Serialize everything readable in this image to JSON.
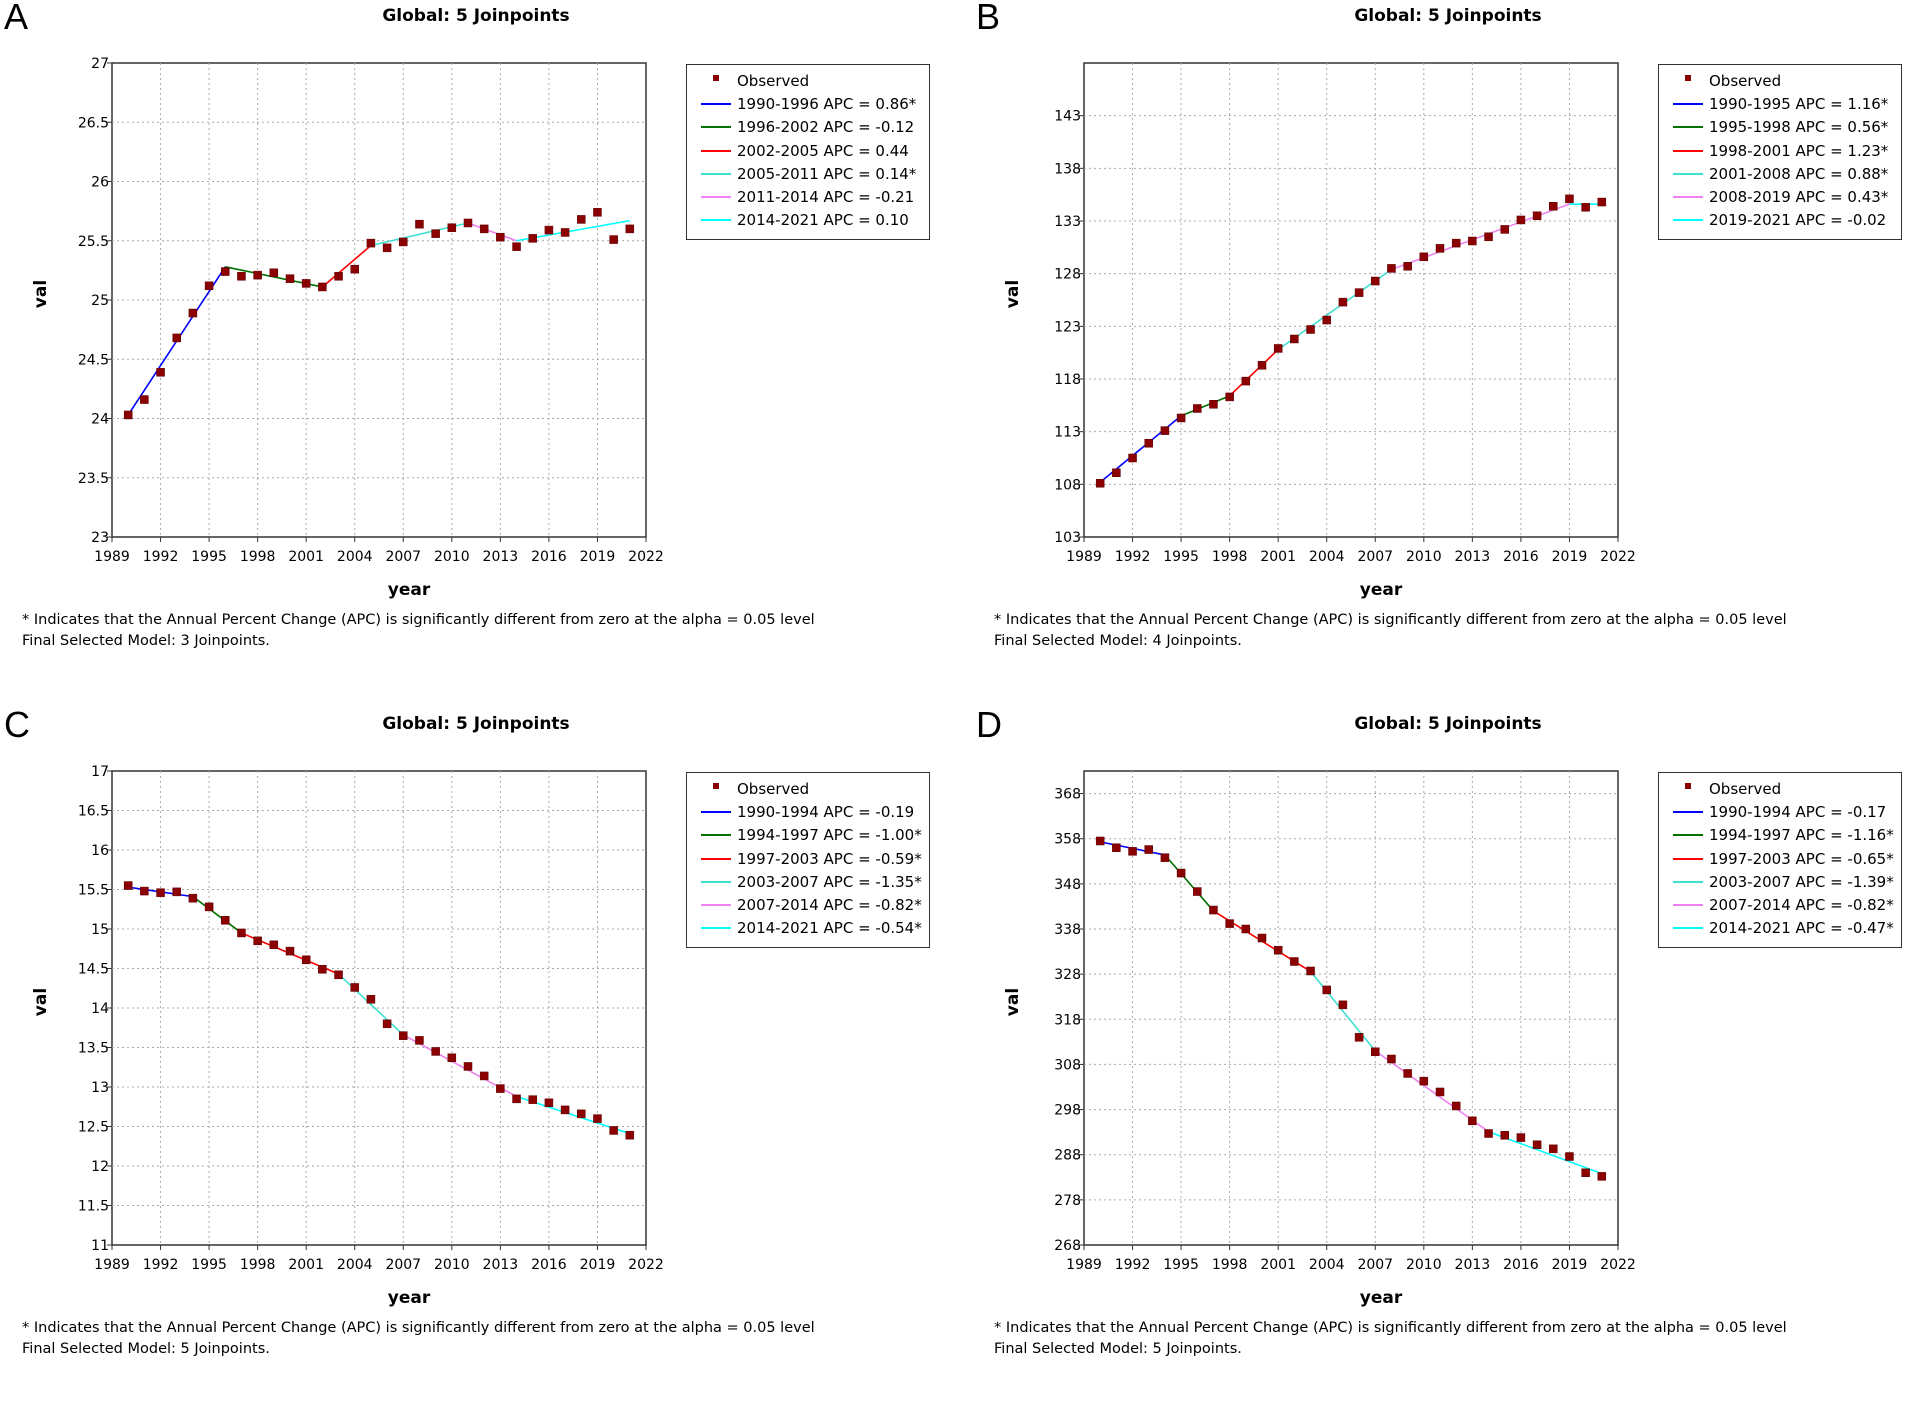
{
  "panels": [
    {
      "letter": "A",
      "title": "Global: 5 Joinpoints",
      "footnote": "* Indicates that the Annual Percent Change (APC) is significantly different from zero at the alpha = 0.05 level",
      "final_model": "Final Selected Model: 3 Joinpoints.",
      "legend": [
        {
          "label": "Observed",
          "color": "#8b0000",
          "kind": "point"
        },
        {
          "label": "1990-1996 APC  =  0.86*",
          "color": "#0000ff",
          "kind": "line"
        },
        {
          "label": "1996-2002 APC  = -0.12",
          "color": "#007000",
          "kind": "line"
        },
        {
          "label": "2002-2005 APC  =  0.44",
          "color": "#ff0000",
          "kind": "line"
        },
        {
          "label": "2005-2011 APC  =  0.14*",
          "color": "#40e0d0",
          "kind": "line"
        },
        {
          "label": "2011-2014 APC  = -0.21",
          "color": "#ee82ee",
          "kind": "line"
        },
        {
          "label": "2014-2021 APC  =  0.10",
          "color": "#00ffff",
          "kind": "line"
        }
      ]
    },
    {
      "letter": "B",
      "title": "Global: 5 Joinpoints",
      "footnote": "* Indicates that the Annual Percent Change (APC) is significantly different from zero at the alpha = 0.05 level",
      "final_model": "Final Selected Model: 4 Joinpoints.",
      "legend": [
        {
          "label": "Observed",
          "color": "#8b0000",
          "kind": "point"
        },
        {
          "label": "1990-1995 APC  =  1.16*",
          "color": "#0000ff",
          "kind": "line"
        },
        {
          "label": "1995-1998 APC  =  0.56*",
          "color": "#007000",
          "kind": "line"
        },
        {
          "label": "1998-2001 APC  =  1.23*",
          "color": "#ff0000",
          "kind": "line"
        },
        {
          "label": "2001-2008 APC  =  0.88*",
          "color": "#40e0d0",
          "kind": "line"
        },
        {
          "label": "2008-2019 APC  =  0.43*",
          "color": "#ee82ee",
          "kind": "line"
        },
        {
          "label": "2019-2021 APC  = -0.02",
          "color": "#00ffff",
          "kind": "line"
        }
      ]
    },
    {
      "letter": "C",
      "title": "Global: 5 Joinpoints",
      "footnote": "* Indicates that the Annual Percent Change (APC) is significantly different from zero at the alpha = 0.05 level",
      "final_model": "Final Selected Model: 5 Joinpoints.",
      "legend": [
        {
          "label": "Observed",
          "color": "#8b0000",
          "kind": "point"
        },
        {
          "label": "1990-1994 APC  = -0.19",
          "color": "#0000ff",
          "kind": "line"
        },
        {
          "label": "1994-1997 APC  = -1.00*",
          "color": "#007000",
          "kind": "line"
        },
        {
          "label": "1997-2003 APC  = -0.59*",
          "color": "#ff0000",
          "kind": "line"
        },
        {
          "label": "2003-2007 APC  = -1.35*",
          "color": "#40e0d0",
          "kind": "line"
        },
        {
          "label": "2007-2014 APC  = -0.82*",
          "color": "#ee82ee",
          "kind": "line"
        },
        {
          "label": "2014-2021 APC  = -0.54*",
          "color": "#00ffff",
          "kind": "line"
        }
      ]
    },
    {
      "letter": "D",
      "title": "Global: 5 Joinpoints",
      "footnote": "* Indicates that the Annual Percent Change (APC) is significantly different from zero at the alpha = 0.05 level",
      "final_model": "Final Selected Model: 5 Joinpoints.",
      "legend": [
        {
          "label": "Observed",
          "color": "#8b0000",
          "kind": "point"
        },
        {
          "label": "1990-1994 APC  = -0.17",
          "color": "#0000ff",
          "kind": "line"
        },
        {
          "label": "1994-1997 APC  = -1.16*",
          "color": "#007000",
          "kind": "line"
        },
        {
          "label": "1997-2003 APC  = -0.65*",
          "color": "#ff0000",
          "kind": "line"
        },
        {
          "label": "2003-2007 APC  = -1.39*",
          "color": "#40e0d0",
          "kind": "line"
        },
        {
          "label": "2007-2014 APC  = -0.82*",
          "color": "#ee82ee",
          "kind": "line"
        },
        {
          "label": "2014-2021 APC  = -0.47*",
          "color": "#00ffff",
          "kind": "line"
        }
      ]
    }
  ],
  "chart_data": [
    {
      "type": "scatter",
      "title": "Global: 5 Joinpoints",
      "xlabel": "year",
      "ylabel": "val",
      "xlim": [
        1989,
        2022
      ],
      "ylim": [
        23,
        27
      ],
      "x_ticks": [
        "1989",
        "1992",
        "1995",
        "1998",
        "2001",
        "2004",
        "2007",
        "2010",
        "2013",
        "2016",
        "2019",
        "2022"
      ],
      "y_ticks": [
        "23",
        "23.5",
        "24",
        "24.5",
        "25",
        "25.5",
        "26",
        "26.5",
        "27"
      ],
      "x": [
        1990,
        1991,
        1992,
        1993,
        1994,
        1995,
        1996,
        1997,
        1998,
        1999,
        2000,
        2001,
        2002,
        2003,
        2004,
        2005,
        2006,
        2007,
        2008,
        2009,
        2010,
        2011,
        2012,
        2013,
        2014,
        2015,
        2016,
        2017,
        2018,
        2019,
        2020,
        2021
      ],
      "observed": [
        24.03,
        24.16,
        24.39,
        24.68,
        24.89,
        25.12,
        25.24,
        25.2,
        25.21,
        25.23,
        25.18,
        25.14,
        25.11,
        25.2,
        25.26,
        25.48,
        25.44,
        25.49,
        25.64,
        25.56,
        25.61,
        25.65,
        25.6,
        25.53,
        25.45,
        25.52,
        25.59,
        25.57,
        25.68,
        25.74,
        25.51,
        25.6
      ],
      "fitted_segments": [
        {
          "name": "1990-1996 APC  =  0.86*",
          "color": "#0000ff",
          "x": [
            1990,
            1996
          ],
          "y": [
            24.03,
            25.28
          ]
        },
        {
          "name": "1996-2002 APC  = -0.12",
          "color": "#007000",
          "x": [
            1996,
            2002
          ],
          "y": [
            25.28,
            25.11
          ]
        },
        {
          "name": "2002-2005 APC  =  0.44",
          "color": "#ff0000",
          "x": [
            2002,
            2005
          ],
          "y": [
            25.11,
            25.46
          ]
        },
        {
          "name": "2005-2011 APC  =  0.14*",
          "color": "#40e0d0",
          "x": [
            2005,
            2011
          ],
          "y": [
            25.46,
            25.65
          ]
        },
        {
          "name": "2011-2014 APC  = -0.21",
          "color": "#ee82ee",
          "x": [
            2011,
            2014
          ],
          "y": [
            25.65,
            25.5
          ]
        },
        {
          "name": "2014-2021 APC  =  0.10",
          "color": "#00ffff",
          "x": [
            2014,
            2021
          ],
          "y": [
            25.5,
            25.67
          ]
        }
      ]
    },
    {
      "type": "scatter",
      "title": "Global: 5 Joinpoints",
      "xlabel": "year",
      "ylabel": "val",
      "xlim": [
        1989,
        2022
      ],
      "ylim": [
        103,
        148
      ],
      "x_ticks": [
        "1989",
        "1992",
        "1995",
        "1998",
        "2001",
        "2004",
        "2007",
        "2010",
        "2013",
        "2016",
        "2019",
        "2022"
      ],
      "y_ticks": [
        "103",
        "108",
        "113",
        "118",
        "123",
        "128",
        "133",
        "138",
        "143"
      ],
      "x": [
        1990,
        1991,
        1992,
        1993,
        1994,
        1995,
        1996,
        1997,
        1998,
        1999,
        2000,
        2001,
        2002,
        2003,
        2004,
        2005,
        2006,
        2007,
        2008,
        2009,
        2010,
        2011,
        2012,
        2013,
        2014,
        2015,
        2016,
        2017,
        2018,
        2019,
        2020,
        2021
      ],
      "observed": [
        108.1,
        109.1,
        110.5,
        111.9,
        113.1,
        114.3,
        115.2,
        115.6,
        116.3,
        117.8,
        119.3,
        120.9,
        121.8,
        122.7,
        123.6,
        125.3,
        126.2,
        127.3,
        128.5,
        128.7,
        129.6,
        130.4,
        130.9,
        131.1,
        131.5,
        132.2,
        133.1,
        133.5,
        134.4,
        135.1,
        134.3,
        134.8
      ],
      "fitted_segments": [
        {
          "name": "1990-1995 APC  =  1.16*",
          "color": "#0000ff",
          "x": [
            1990,
            1995
          ],
          "y": [
            108.2,
            114.5
          ]
        },
        {
          "name": "1995-1998 APC  =  0.56*",
          "color": "#007000",
          "x": [
            1995,
            1998
          ],
          "y": [
            114.5,
            116.4
          ]
        },
        {
          "name": "1998-2001 APC  =  1.23*",
          "color": "#ff0000",
          "x": [
            1998,
            2001
          ],
          "y": [
            116.4,
            120.8
          ]
        },
        {
          "name": "2001-2008 APC  =  0.88*",
          "color": "#40e0d0",
          "x": [
            2001,
            2008
          ],
          "y": [
            120.8,
            128.4
          ]
        },
        {
          "name": "2008-2019 APC  =  0.43*",
          "color": "#ee82ee",
          "x": [
            2008,
            2019
          ],
          "y": [
            128.4,
            134.6
          ]
        },
        {
          "name": "2019-2021 APC  = -0.02",
          "color": "#00ffff",
          "x": [
            2019,
            2021
          ],
          "y": [
            134.6,
            134.6
          ]
        }
      ]
    },
    {
      "type": "scatter",
      "title": "Global: 5 Joinpoints",
      "xlabel": "year",
      "ylabel": "val",
      "xlim": [
        1989,
        2022
      ],
      "ylim": [
        11,
        17
      ],
      "x_ticks": [
        "1989",
        "1992",
        "1995",
        "1998",
        "2001",
        "2004",
        "2007",
        "2010",
        "2013",
        "2016",
        "2019",
        "2022"
      ],
      "y_ticks": [
        "11",
        "11.5",
        "12",
        "12.5",
        "13",
        "13.5",
        "14",
        "14.5",
        "15",
        "15.5",
        "16",
        "16.5",
        "17"
      ],
      "x": [
        1990,
        1991,
        1992,
        1993,
        1994,
        1995,
        1996,
        1997,
        1998,
        1999,
        2000,
        2001,
        2002,
        2003,
        2004,
        2005,
        2006,
        2007,
        2008,
        2009,
        2010,
        2011,
        2012,
        2013,
        2014,
        2015,
        2016,
        2017,
        2018,
        2019,
        2020,
        2021
      ],
      "observed": [
        15.55,
        15.48,
        15.46,
        15.47,
        15.39,
        15.28,
        15.11,
        14.95,
        14.85,
        14.8,
        14.72,
        14.61,
        14.49,
        14.42,
        14.26,
        14.11,
        13.8,
        13.65,
        13.59,
        13.45,
        13.37,
        13.26,
        13.14,
        12.98,
        12.85,
        12.84,
        12.8,
        12.71,
        12.66,
        12.6,
        12.45,
        12.39
      ],
      "fitted_segments": [
        {
          "name": "1990-1994 APC  = -0.19",
          "color": "#0000ff",
          "x": [
            1990,
            1994
          ],
          "y": [
            15.53,
            15.41
          ]
        },
        {
          "name": "1994-1997 APC  = -1.00*",
          "color": "#007000",
          "x": [
            1994,
            1997
          ],
          "y": [
            15.41,
            14.95
          ]
        },
        {
          "name": "1997-2003 APC  = -0.59*",
          "color": "#ff0000",
          "x": [
            1997,
            2003
          ],
          "y": [
            14.95,
            14.43
          ]
        },
        {
          "name": "2003-2007 APC  = -1.35*",
          "color": "#40e0d0",
          "x": [
            2003,
            2007
          ],
          "y": [
            14.43,
            13.66
          ]
        },
        {
          "name": "2007-2014 APC  = -0.82*",
          "color": "#ee82ee",
          "x": [
            2007,
            2014
          ],
          "y": [
            13.66,
            12.88
          ]
        },
        {
          "name": "2014-2021 APC  = -0.54*",
          "color": "#00ffff",
          "x": [
            2014,
            2021
          ],
          "y": [
            12.88,
            12.41
          ]
        }
      ]
    },
    {
      "type": "scatter",
      "title": "Global: 5 Joinpoints",
      "xlabel": "year",
      "ylabel": "val",
      "xlim": [
        1989,
        2022
      ],
      "ylim": [
        268,
        373
      ],
      "x_ticks": [
        "1989",
        "1992",
        "1995",
        "1998",
        "2001",
        "2004",
        "2007",
        "2010",
        "2013",
        "2016",
        "2019",
        "2022"
      ],
      "y_ticks": [
        "268",
        "278",
        "288",
        "298",
        "308",
        "318",
        "328",
        "338",
        "348",
        "358",
        "368"
      ],
      "x": [
        1990,
        1991,
        1992,
        1993,
        1994,
        1995,
        1996,
        1997,
        1998,
        1999,
        2000,
        2001,
        2002,
        2003,
        2004,
        2005,
        2006,
        2007,
        2008,
        2009,
        2010,
        2011,
        2012,
        2013,
        2014,
        2015,
        2016,
        2017,
        2018,
        2019,
        2020,
        2021
      ],
      "observed": [
        357.5,
        356.0,
        355.2,
        355.6,
        353.8,
        350.4,
        346.3,
        342.2,
        339.2,
        338.0,
        336.0,
        333.3,
        330.8,
        328.7,
        324.5,
        321.2,
        314.0,
        310.8,
        309.2,
        306.0,
        304.3,
        301.9,
        298.8,
        295.5,
        292.7,
        292.3,
        291.8,
        290.2,
        289.3,
        287.6,
        284.0,
        283.2
      ],
      "fitted_segments": [
        {
          "name": "1990-1994 APC  = -0.17",
          "color": "#0000ff",
          "x": [
            1990,
            1994
          ],
          "y": [
            357.3,
            354.4
          ]
        },
        {
          "name": "1994-1997 APC  = -1.16*",
          "color": "#007000",
          "x": [
            1994,
            1997
          ],
          "y": [
            354.4,
            342.0
          ]
        },
        {
          "name": "1997-2003 APC  = -0.65*",
          "color": "#ff0000",
          "x": [
            1997,
            2003
          ],
          "y": [
            342.0,
            328.6
          ]
        },
        {
          "name": "2003-2007 APC  = -1.39*",
          "color": "#40e0d0",
          "x": [
            2003,
            2007
          ],
          "y": [
            328.6,
            311.0
          ]
        },
        {
          "name": "2007-2014 APC  = -0.82*",
          "color": "#ee82ee",
          "x": [
            2007,
            2014
          ],
          "y": [
            311.0,
            293.1
          ]
        },
        {
          "name": "2014-2021 APC  = -0.47*",
          "color": "#00ffff",
          "x": [
            2014,
            2021
          ],
          "y": [
            293.1,
            283.8
          ]
        }
      ]
    }
  ]
}
